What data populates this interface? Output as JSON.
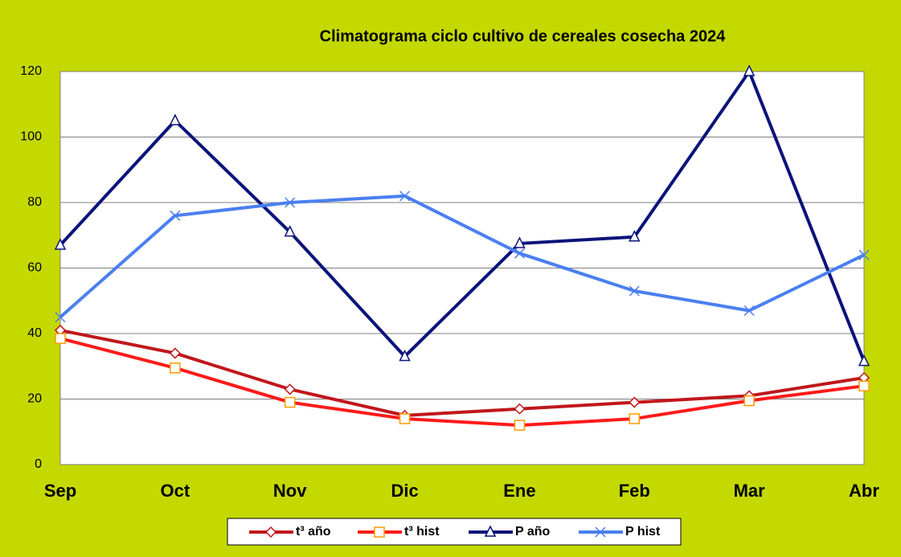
{
  "chart_data": {
    "type": "line",
    "title": "Climatograma ciclo cultivo de cereales cosecha 2024",
    "categories": [
      "Sep",
      "Oct",
      "Nov",
      "Dic",
      "Ene",
      "Feb",
      "Mar",
      "Abr"
    ],
    "series": [
      {
        "name": "t³ año",
        "color": "#c0171c",
        "marker": "diamond",
        "values": [
          41,
          34,
          23,
          15,
          17,
          19,
          21,
          26.5
        ]
      },
      {
        "name": "t³ hist",
        "color": "#ff1a1a",
        "marker": "square",
        "values": [
          38.5,
          29.5,
          19,
          14,
          12,
          14,
          19.5,
          24
        ]
      },
      {
        "name": "P año",
        "color": "#0a137a",
        "marker": "triangle",
        "values": [
          67,
          105,
          71,
          33,
          67.5,
          69.5,
          120,
          31.5
        ]
      },
      {
        "name": "P hist",
        "color": "#4a7ff0",
        "marker": "x",
        "values": [
          45,
          76,
          80,
          82,
          64.5,
          53,
          47,
          64
        ]
      }
    ],
    "ylim": [
      0,
      120
    ],
    "yticks": [
      0,
      20,
      40,
      60,
      80,
      100,
      120
    ],
    "grid": true,
    "legend": "bottom"
  }
}
